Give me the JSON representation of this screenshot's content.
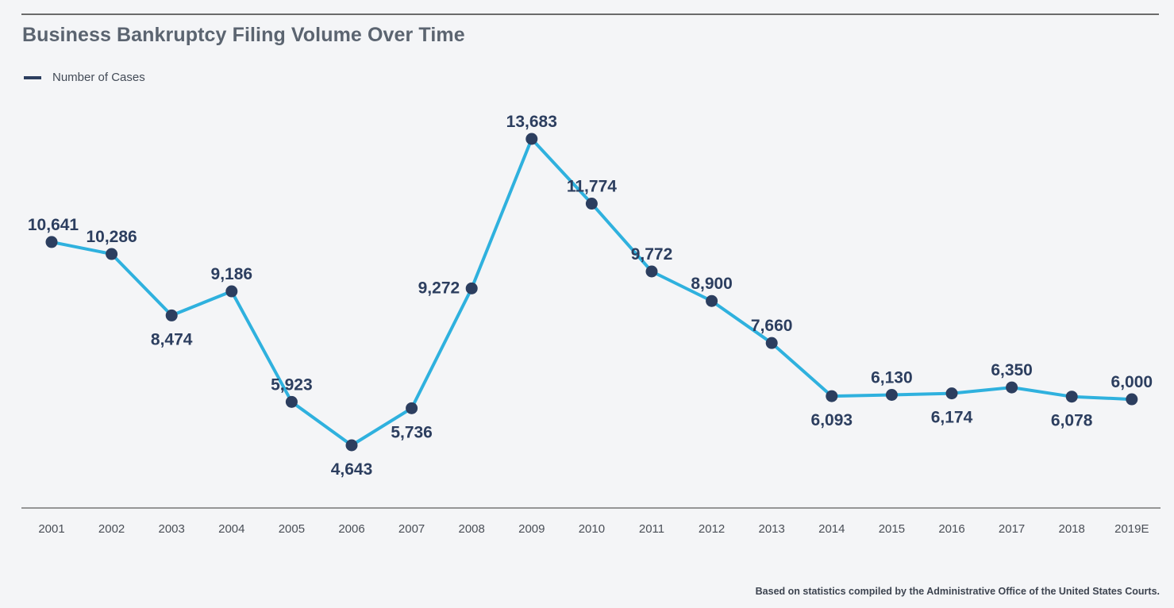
{
  "colors": {
    "line": "#2fb1de",
    "marker": "#2c3e5f",
    "label": "#2c3e5f",
    "tick": "#4a4f57",
    "axis": "#777777"
  },
  "chart_data": {
    "type": "line",
    "title": "Business Bankruptcy Filing Volume Over Time",
    "categories": [
      "2001",
      "2002",
      "2003",
      "2004",
      "2005",
      "2006",
      "2007",
      "2008",
      "2009",
      "2010",
      "2011",
      "2012",
      "2013",
      "2014",
      "2015",
      "2016",
      "2017",
      "2018",
      "2019E"
    ],
    "series": [
      {
        "name": "Number of Cases",
        "values": [
          10641,
          10286,
          8474,
          9186,
          5923,
          4643,
          5736,
          9272,
          13683,
          11774,
          9772,
          8900,
          7660,
          6093,
          6130,
          6174,
          6350,
          6078,
          6000
        ],
        "labels": [
          "10,641",
          "10,286",
          "8,474",
          "9,186",
          "5,923",
          "4,643",
          "5,736",
          "9,272",
          "13,683",
          "11,774",
          "9,772",
          "8,900",
          "7,660",
          "6,093",
          "6,130",
          "6,174",
          "6,350",
          "6,078",
          "6,000"
        ]
      }
    ],
    "label_placement": [
      "above",
      "above",
      "below",
      "above",
      "above",
      "below",
      "below",
      "left",
      "above",
      "above",
      "above",
      "above",
      "above",
      "below",
      "above",
      "below",
      "above",
      "below",
      "above"
    ],
    "legend_position": "top-left",
    "grid": false,
    "note": "Based on statistics compiled by the Administrative Office of the United States Courts."
  }
}
